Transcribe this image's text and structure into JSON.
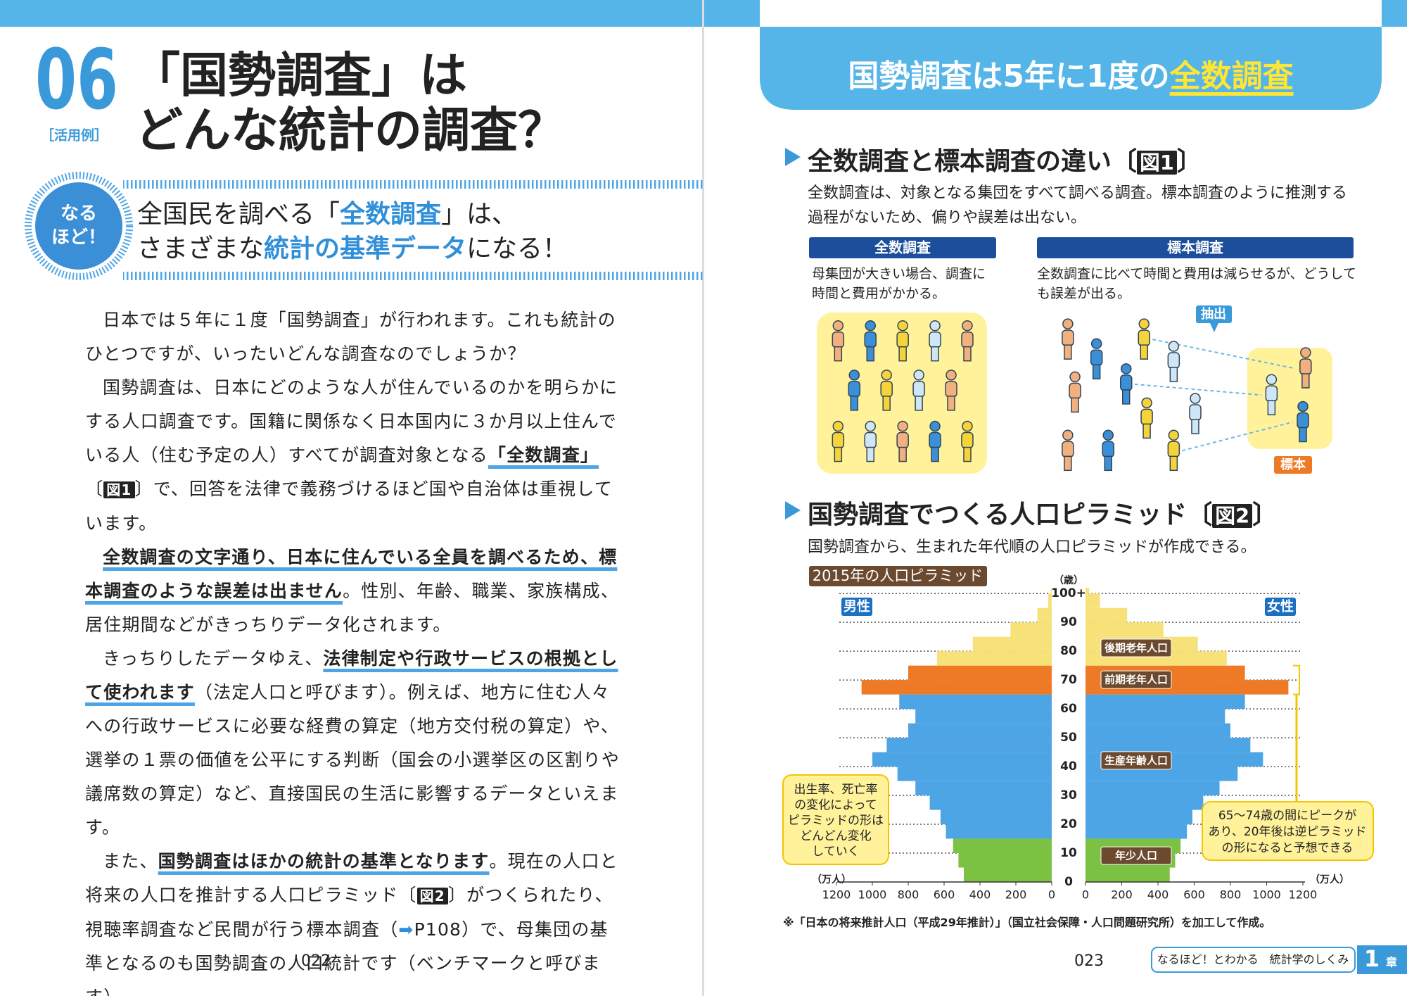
{
  "left_page": {
    "number": "06",
    "tag": "［活用例］",
    "title": [
      "「国勢調査」は",
      "どんな統計の調査？"
    ],
    "badge": [
      "なる",
      "ほど！"
    ],
    "lead": [
      [
        {
          "text": "全国民を調べる「"
        },
        {
          "text": "全数調査",
          "style": "em"
        },
        {
          "text": "」は、"
        }
      ],
      [
        {
          "text": "さまざまな"
        },
        {
          "text": "統計の基準データ",
          "style": "em"
        },
        {
          "text": "になる！"
        }
      ]
    ],
    "body": [
      [
        {
          "text": "日本では５年に１度「国勢調査」が行われます。これも統計のひとつですが、いったいどんな調査なのでしょうか？"
        }
      ],
      [
        {
          "text": "国勢調査は、日本にどのような人が住んでいるのかを明らかにする人口調査です。国籍に関係なく日本国内に３か月以上住んでいる人（住む予定の人）すべてが調査対象となる"
        },
        {
          "text": "「全数調査」",
          "style": "ul"
        },
        {
          "text": "〔"
        },
        {
          "text": "図1",
          "style": "fig"
        },
        {
          "text": "〕で、回答を法律で義務づけるほど国や自治体は重視しています。"
        }
      ],
      [
        {
          "text": "全数調査の文字通り、日本に住んでいる全員を調べるため、標本調査のような誤差は出ません",
          "style": "ul"
        },
        {
          "text": "。性別、年齢、職業、家族構成、居住期間などがきっちりデータ化されます。"
        }
      ],
      [
        {
          "text": "きっちりしたデータゆえ、"
        },
        {
          "text": "法律制定や行政サービスの根拠として使われます",
          "style": "ul"
        },
        {
          "text": "（法定人口と呼びます）。例えば、地方に住む人々への行政サービスに必要な経費の算定（地方交付税の算定）や、選挙の１票の価値を公平にする判断（国会の小選挙区の区割りや議席数の算定）など、直接国民の生活に影響するデータといえます。"
        }
      ],
      [
        {
          "text": "また、"
        },
        {
          "text": "国勢調査はほかの統計の基準となります",
          "style": "ul"
        },
        {
          "text": "。現在の人口と将来の人口を推計する人口ピラミッド〔"
        },
        {
          "text": "図2",
          "style": "fig"
        },
        {
          "text": "〕がつくられたり、視聴率調査など民間が行う標本調査（"
        },
        {
          "text": "➡",
          "style": "blue"
        },
        {
          "text": "P108）で、母集団の基準となるのも国勢調査の人口統計です（ベンチマークと呼びます）。"
        }
      ]
    ],
    "page_number": "022"
  },
  "right_page": {
    "header": [
      {
        "text": "国勢調査は5年に1度の"
      },
      {
        "text": "全数調査",
        "style": "hl"
      }
    ],
    "section1": {
      "heading": [
        {
          "text": "全数調査と標本調査の違い"
        },
        {
          "text": "〔"
        },
        {
          "text": "図1",
          "style": "fig"
        },
        {
          "text": "〕"
        }
      ],
      "description": "全数調査は、対象となる集団をすべて調べる調査。標本調査のように推測する過程がないため、偏りや誤差は出ない。",
      "columns": [
        {
          "label": "全数調査",
          "text": "母集団が大きい場合、調査に時間と費用がかかる。"
        },
        {
          "label": "標本調査",
          "text": "全数調査に比べて時間と費用は減らせるが、どうしても誤差が出る。"
        }
      ],
      "extract_label": "抽出",
      "sample_label": "標本"
    },
    "section2": {
      "heading": [
        {
          "text": "国勢調査でつくる人口ピラミッド"
        },
        {
          "text": "〔"
        },
        {
          "text": "図2",
          "style": "fig"
        },
        {
          "text": "〕"
        }
      ],
      "description": "国勢調査から、生まれた年代順の人口ピラミッドが作成できる。"
    },
    "pyramid": {
      "type": "population-pyramid",
      "title": "2015年の人口ピラミッド",
      "age_unit": "（歳）",
      "value_unit": "（万人）",
      "male_label": "男性",
      "female_label": "女性",
      "ages": [
        0,
        5,
        10,
        15,
        20,
        25,
        30,
        35,
        40,
        45,
        50,
        55,
        60,
        65,
        70,
        75,
        80,
        85,
        90,
        95,
        100
      ],
      "male": [
        490,
        520,
        550,
        590,
        620,
        680,
        760,
        860,
        1000,
        920,
        800,
        760,
        850,
        1060,
        800,
        640,
        440,
        230,
        80,
        20,
        5
      ],
      "female": [
        465,
        495,
        525,
        560,
        590,
        650,
        740,
        840,
        980,
        910,
        800,
        770,
        880,
        1120,
        880,
        780,
        620,
        430,
        230,
        80,
        20
      ],
      "groups": [
        {
          "label": "年少人口",
          "from": 0,
          "color": "#7cc242"
        },
        {
          "label": "生産年齢人口",
          "from": 15,
          "color": "#4ea5e6"
        },
        {
          "label": "前期老年人口",
          "from": 65,
          "color": "#ee7a26"
        },
        {
          "label": "後期老年人口",
          "from": 75,
          "color": "#f7e27a"
        }
      ],
      "xlim": [
        0,
        1200
      ],
      "xticks": [
        0,
        200,
        400,
        600,
        800,
        1000,
        1200
      ],
      "ylim": [
        0,
        102
      ],
      "yticks": [
        0,
        10,
        20,
        30,
        40,
        50,
        60,
        70,
        80,
        90,
        {
          "value": 100,
          "label": "100+"
        }
      ],
      "notes": {
        "left": [
          "出生率、死亡率",
          "の変化によって",
          "ピラミッドの形は",
          "どんどん変化",
          "していく"
        ],
        "right": [
          "65～74歳の間にピークが",
          "あり、20年後は逆ピラミッド",
          "の形になると予想できる"
        ]
      }
    },
    "footnote": "※「日本の将来推計人口（平成29年推計）」（国立社会保障・人口問題研究所）を加工して作成。",
    "page_number": "023",
    "footer": {
      "text": "なるほど！とわかる　統計学のしくみ",
      "chapter": "1",
      "chapter_suffix": "章"
    }
  }
}
